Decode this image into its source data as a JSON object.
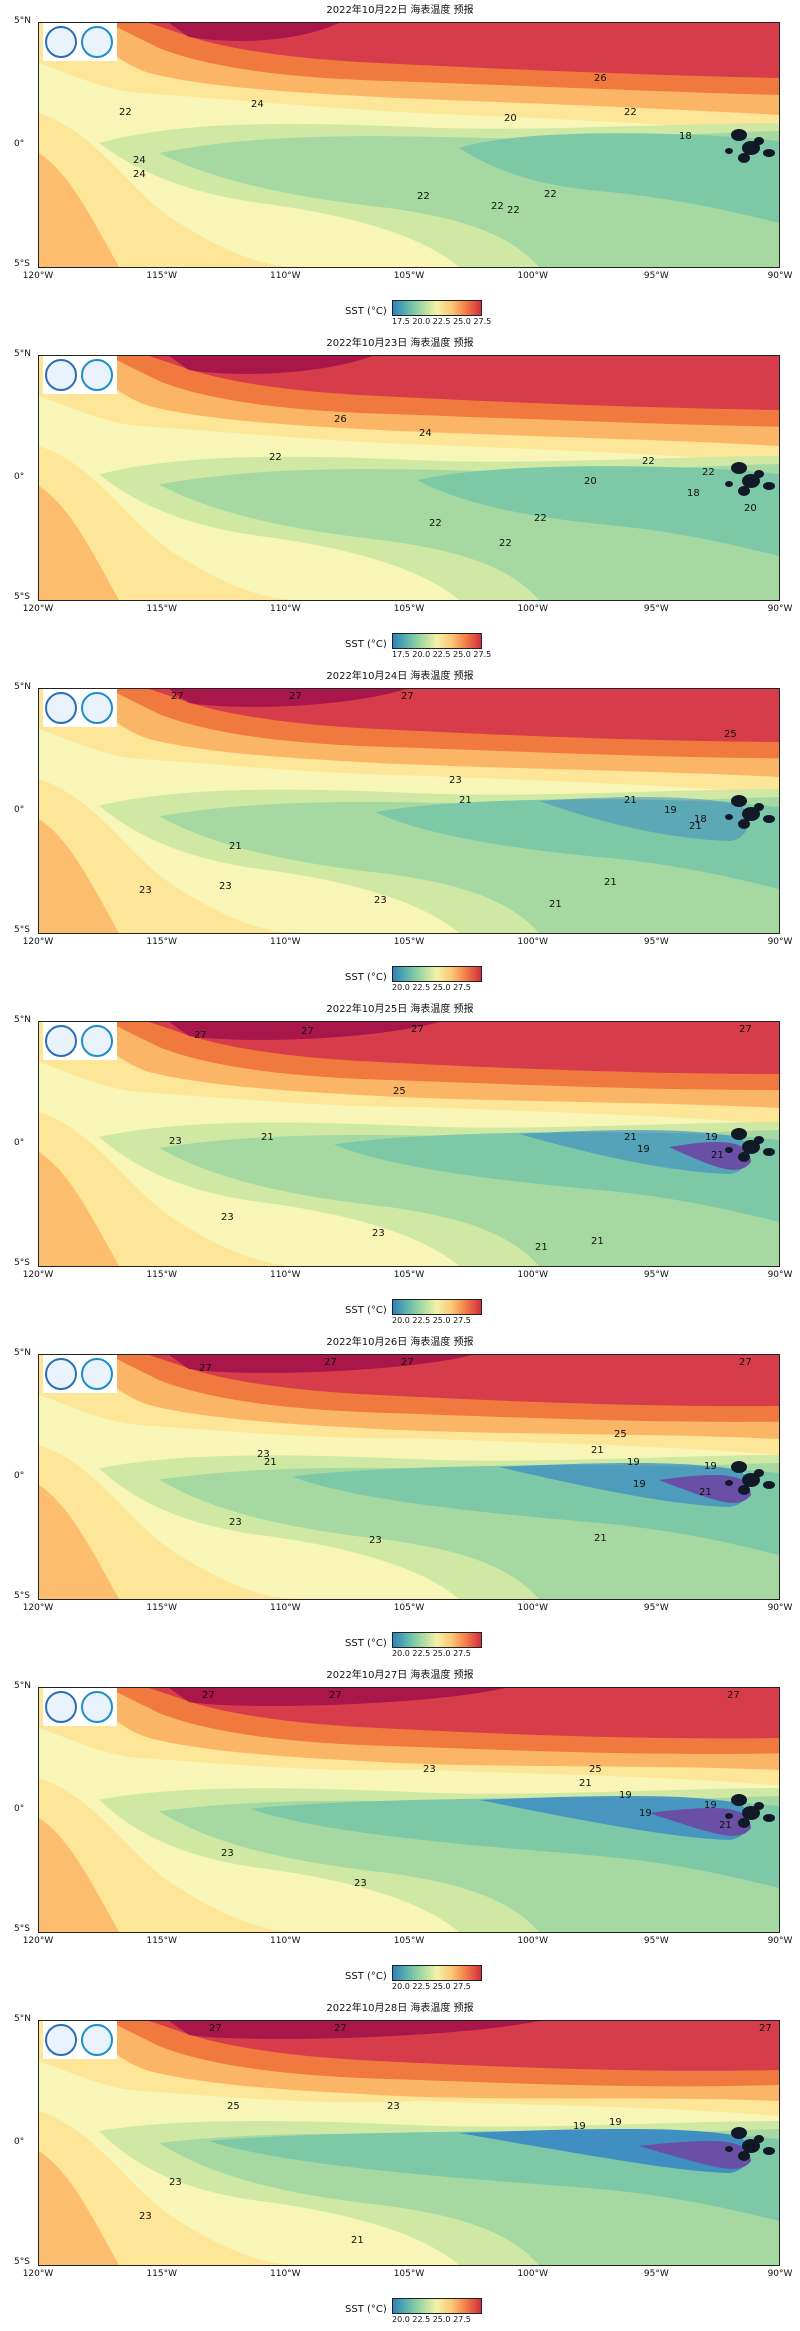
{
  "panels": [
    {
      "title": "2022年10月22日 海表温度 预报",
      "labels": [
        "26",
        "24",
        "22",
        "22",
        "20",
        "18",
        "24",
        "24",
        "22",
        "22",
        "22",
        "22"
      ],
      "cbar_ticks": "17.5 20.0 22.5 25.0 27.5"
    },
    {
      "title": "2022年10月23日 海表温度 预报",
      "labels": [
        "26",
        "24",
        "22",
        "22",
        "20",
        "22",
        "18",
        "20",
        "22",
        "22",
        "22"
      ],
      "cbar_ticks": "17.5 20.0 22.5 25.0 27.5"
    },
    {
      "title": "2022年10月24日 海表温度 预报",
      "labels": [
        "27",
        "27",
        "27",
        "25",
        "23",
        "21",
        "21",
        "19",
        "18",
        "21",
        "21",
        "23",
        "23",
        "23",
        "21",
        "21"
      ],
      "cbar_ticks": "20.0 22.5 25.0 27.5"
    },
    {
      "title": "2022年10月25日 海表温度 预报",
      "labels": [
        "27",
        "27",
        "27",
        "27",
        "25",
        "23",
        "21",
        "21",
        "19",
        "19",
        "21",
        "23",
        "23",
        "21",
        "21"
      ],
      "cbar_ticks": "20.0 22.5 25.0 27.5"
    },
    {
      "title": "2022年10月26日 海表温度 预报",
      "labels": [
        "27",
        "27",
        "27",
        "27",
        "25",
        "23",
        "21",
        "21",
        "19",
        "19",
        "19",
        "23",
        "23",
        "21",
        "21"
      ],
      "cbar_ticks": "20.0 22.5 25.0 27.5"
    },
    {
      "title": "2022年10月27日 海表温度 预报",
      "labels": [
        "27",
        "27",
        "27",
        "25",
        "23",
        "21",
        "19",
        "19",
        "19",
        "23",
        "23",
        "21"
      ],
      "cbar_ticks": "20.0 22.5 25.0 27.5"
    },
    {
      "title": "2022年10月28日 海表温度 预报",
      "labels": [
        "27",
        "27",
        "27",
        "25",
        "23",
        "19",
        "19",
        "21",
        "23",
        "23",
        "21"
      ],
      "cbar_ticks": "20.0 22.5 25.0 27.5"
    }
  ],
  "axes": {
    "y_ticks": [
      "5°N",
      "0°",
      "5°S"
    ],
    "x_ticks": [
      "120°W",
      "115°W",
      "110°W",
      "105°W",
      "100°W",
      "95°W",
      "90°W"
    ]
  },
  "colorbar_label": "SST (°C)",
  "colors": {
    "hot": "#a8164a",
    "red": "#d73c4a",
    "orange": "#f0793f",
    "lightorange": "#fbb567",
    "yellow": "#fde697",
    "paleyellow": "#f8f6b6",
    "lightgreen": "#cfe9a5",
    "green": "#a6d8a2",
    "teal": "#79c7a8",
    "blue": "#3f8fc2",
    "purple": "#6a4fa6",
    "land": "#111826"
  }
}
